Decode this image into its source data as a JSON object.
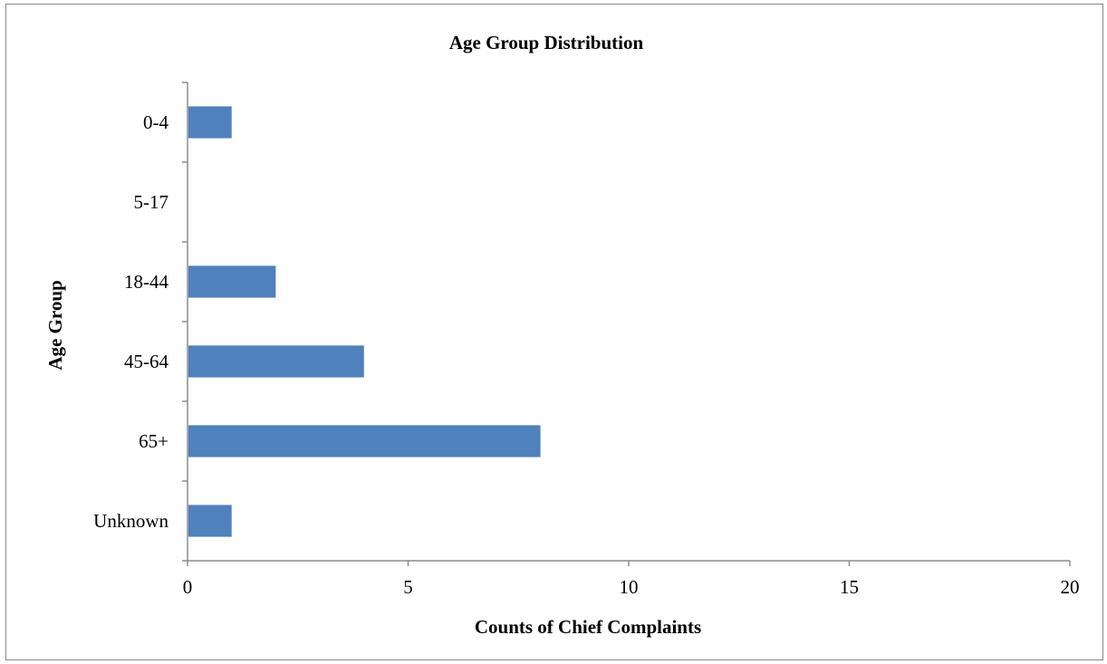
{
  "chart_data": {
    "type": "bar",
    "orientation": "horizontal",
    "title": "Age Group Distribution",
    "xlabel": "Counts of Chief Complaints",
    "ylabel": "Age Group",
    "categories": [
      "0-4",
      "5-17",
      "18-44",
      "45-64",
      "65+",
      "Unknown"
    ],
    "values": [
      1,
      0,
      2,
      4,
      8,
      1
    ],
    "xlim": [
      0,
      20
    ],
    "xticks": [
      0,
      5,
      10,
      15,
      20
    ],
    "grid": false,
    "legend": "none",
    "bar_color": "#4f81bd"
  }
}
